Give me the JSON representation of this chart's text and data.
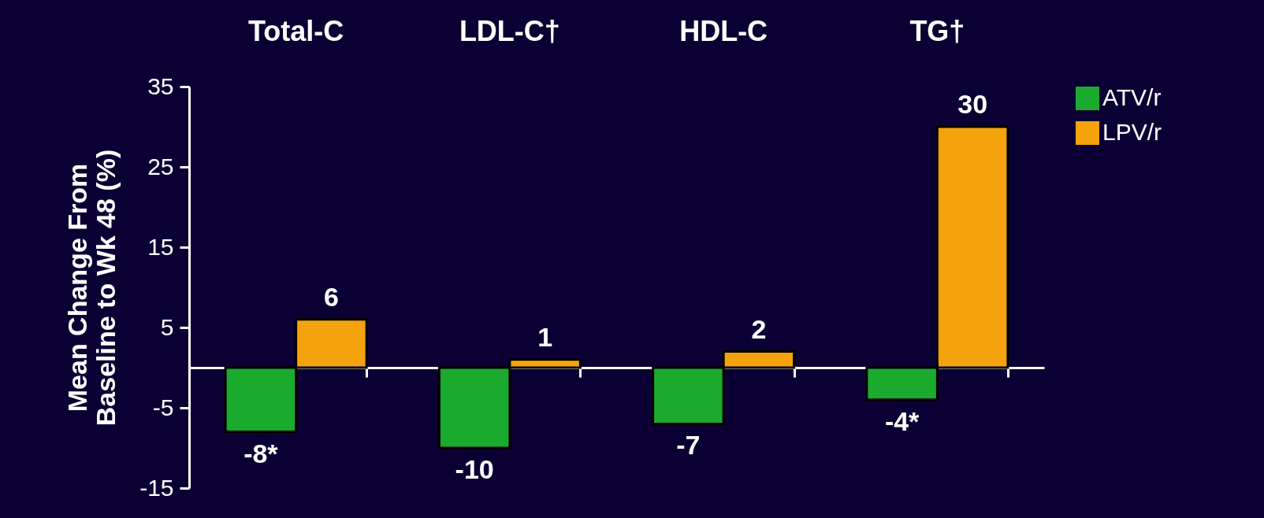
{
  "chart_data": {
    "type": "bar",
    "categories": [
      "Total-C",
      "LDL-C†",
      "HDL-C",
      "TG†"
    ],
    "ylabel": "Mean Change From\nBaseline to Wk 48 (%)",
    "ylim": [
      -15,
      35
    ],
    "yticks": [
      -15,
      -5,
      5,
      15,
      25,
      35
    ],
    "series": [
      {
        "name": "ATV/r",
        "color": "#1aab2e",
        "values": [
          -8,
          -10,
          -7,
          -4
        ],
        "value_labels": [
          "-8*",
          "-10",
          "-7",
          "-4*"
        ]
      },
      {
        "name": "LPV/r",
        "color": "#f5a30c",
        "values": [
          6,
          1,
          2,
          30
        ],
        "value_labels": [
          "6",
          "1",
          "2",
          "30"
        ]
      }
    ],
    "grid": false,
    "legend": "top right"
  }
}
